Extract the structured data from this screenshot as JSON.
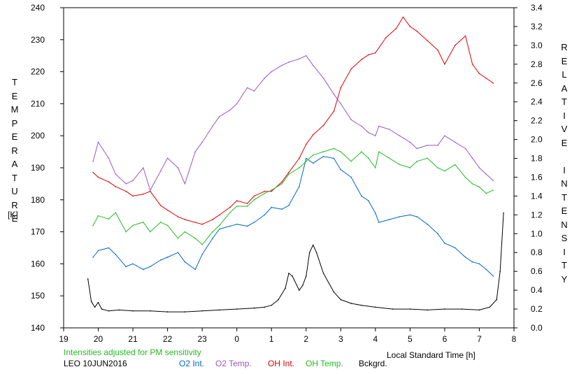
{
  "chart_data": {
    "type": "line",
    "title": "",
    "xlabel": "Local Standard Time [h]",
    "ylabel_left": "TEMPERATURE",
    "ylabel_left_unit": "[K]",
    "ylabel_right": "RELATIVE INTENSITY",
    "x_ticks": [
      "19",
      "20",
      "21",
      "22",
      "23",
      "0",
      "1",
      "2",
      "3",
      "4",
      "5",
      "6",
      "7",
      "8"
    ],
    "x_tick_hours": [
      19,
      20,
      21,
      22,
      23,
      24,
      25,
      26,
      27,
      28,
      29,
      30,
      31,
      32
    ],
    "xlim": [
      19,
      32
    ],
    "ylim_left": [
      140,
      240
    ],
    "y_left_ticks": [
      "140",
      "150",
      "160",
      "170",
      "180",
      "190",
      "200",
      "210",
      "220",
      "230",
      "240"
    ],
    "ylim_right": [
      0.0,
      3.4
    ],
    "y_right_ticks": [
      "0.0",
      "0.2",
      "0.4",
      "0.6",
      "0.8",
      "1.0",
      "1.2",
      "1.4",
      "1.6",
      "1.8",
      "2.0",
      "2.2",
      "2.4",
      "2.6",
      "2.8",
      "3.0",
      "3.2",
      "3.4"
    ],
    "note": "Intensities adjusted for PM sensitivity",
    "station": "LEO 10JUN2016",
    "legend": [
      {
        "label": "O2 Int.",
        "color": "#0066cc"
      },
      {
        "label": "O2 Temp.",
        "color": "#9955cc"
      },
      {
        "label": "OH Int.",
        "color": "#dd0000"
      },
      {
        "label": "OH Temp.",
        "color": "#22bb22"
      },
      {
        "label": "Bckgrd.",
        "color": "#000000"
      }
    ],
    "series": [
      {
        "name": "O2 Int.",
        "axis": "right",
        "color": "#0066cc",
        "x": [
          19.85,
          20.0,
          20.3,
          20.5,
          20.8,
          21.0,
          21.3,
          21.5,
          21.8,
          22.0,
          22.3,
          22.5,
          22.8,
          23.0,
          23.3,
          23.5,
          23.8,
          24.0,
          24.3,
          24.5,
          24.8,
          25.0,
          25.3,
          25.5,
          25.8,
          26.0,
          26.2,
          26.5,
          26.8,
          27.0,
          27.3,
          27.6,
          27.8,
          28.0,
          28.1,
          28.4,
          28.7,
          29.0,
          29.2,
          29.5,
          29.8,
          30.0,
          30.3,
          30.6,
          30.8,
          31.0,
          31.2,
          31.4
        ],
        "y": [
          0.75,
          0.82,
          0.85,
          0.78,
          0.65,
          0.68,
          0.62,
          0.65,
          0.72,
          0.75,
          0.8,
          0.7,
          0.62,
          0.78,
          0.95,
          1.05,
          1.08,
          1.1,
          1.08,
          1.12,
          1.2,
          1.28,
          1.26,
          1.3,
          1.5,
          1.8,
          1.75,
          1.82,
          1.8,
          1.68,
          1.6,
          1.4,
          1.35,
          1.22,
          1.12,
          1.15,
          1.18,
          1.2,
          1.18,
          1.1,
          1.0,
          0.9,
          0.85,
          0.75,
          0.7,
          0.68,
          0.62,
          0.55
        ]
      },
      {
        "name": "O2 Temp.",
        "axis": "left",
        "color": "#9955cc",
        "x": [
          19.85,
          20.0,
          20.3,
          20.5,
          20.8,
          21.0,
          21.3,
          21.5,
          21.8,
          22.0,
          22.3,
          22.5,
          22.8,
          23.0,
          23.3,
          23.5,
          23.8,
          24.0,
          24.3,
          24.5,
          24.8,
          25.0,
          25.3,
          25.5,
          25.8,
          26.0,
          26.2,
          26.5,
          26.8,
          27.0,
          27.3,
          27.6,
          27.8,
          28.0,
          28.1,
          28.4,
          28.7,
          29.0,
          29.2,
          29.5,
          29.8,
          30.0,
          30.3,
          30.6,
          30.8,
          31.0,
          31.2,
          31.4
        ],
        "y": [
          192,
          198,
          193,
          188,
          185,
          186,
          190,
          183,
          189,
          193,
          190,
          185,
          195,
          198,
          203,
          206,
          208,
          210,
          215,
          214,
          218,
          220,
          222,
          223,
          224,
          225,
          222,
          218,
          213,
          210,
          205,
          203,
          201,
          200,
          203,
          202,
          200,
          198,
          196,
          197,
          197,
          200,
          198,
          196,
          193,
          190,
          188,
          186
        ]
      },
      {
        "name": "OH Int.",
        "axis": "right",
        "color": "#dd0000",
        "x": [
          19.85,
          20.0,
          20.3,
          20.5,
          20.8,
          21.0,
          21.3,
          21.5,
          21.8,
          22.0,
          22.3,
          22.5,
          22.8,
          23.0,
          23.3,
          23.5,
          23.8,
          24.0,
          24.3,
          24.5,
          24.8,
          25.0,
          25.3,
          25.5,
          25.8,
          26.0,
          26.2,
          26.5,
          26.8,
          27.0,
          27.3,
          27.6,
          27.8,
          28.0,
          28.3,
          28.6,
          28.8,
          29.0,
          29.2,
          29.5,
          29.8,
          30.0,
          30.3,
          30.6,
          30.8,
          31.0,
          31.2,
          31.4
        ],
        "y": [
          1.65,
          1.6,
          1.55,
          1.5,
          1.45,
          1.4,
          1.42,
          1.45,
          1.3,
          1.25,
          1.18,
          1.15,
          1.12,
          1.1,
          1.15,
          1.2,
          1.28,
          1.35,
          1.32,
          1.4,
          1.45,
          1.45,
          1.55,
          1.65,
          1.8,
          1.95,
          2.05,
          2.15,
          2.3,
          2.55,
          2.75,
          2.85,
          2.9,
          2.92,
          3.08,
          3.18,
          3.3,
          3.2,
          3.15,
          3.05,
          2.95,
          2.8,
          3.0,
          3.1,
          2.8,
          2.7,
          2.65,
          2.6
        ]
      },
      {
        "name": "OH Temp.",
        "axis": "left",
        "color": "#22bb22",
        "x": [
          19.85,
          20.0,
          20.3,
          20.5,
          20.8,
          21.0,
          21.3,
          21.5,
          21.8,
          22.0,
          22.3,
          22.5,
          22.8,
          23.0,
          23.3,
          23.5,
          23.8,
          24.0,
          24.3,
          24.5,
          24.8,
          25.0,
          25.3,
          25.5,
          25.8,
          26.0,
          26.2,
          26.5,
          26.8,
          27.0,
          27.3,
          27.6,
          27.8,
          28.0,
          28.1,
          28.4,
          28.7,
          29.0,
          29.2,
          29.5,
          29.8,
          30.0,
          30.3,
          30.6,
          30.8,
          31.0,
          31.2,
          31.4
        ],
        "y": [
          172,
          175,
          174,
          176,
          170,
          172,
          173,
          170,
          173,
          172,
          168,
          170,
          168,
          166,
          170,
          172,
          176,
          178,
          178,
          180,
          182,
          183,
          185,
          188,
          190,
          192,
          194,
          195,
          196,
          195,
          192,
          195,
          193,
          190,
          195,
          193,
          191,
          190,
          192,
          193,
          190,
          189,
          191,
          187,
          185,
          184,
          182,
          183
        ]
      },
      {
        "name": "Bckgrd.",
        "axis": "right",
        "color": "#000000",
        "x": [
          19.7,
          19.8,
          19.9,
          20.0,
          20.1,
          20.3,
          20.6,
          21.0,
          21.5,
          22.0,
          22.5,
          23.0,
          23.5,
          24.0,
          24.5,
          24.8,
          25.0,
          25.2,
          25.4,
          25.5,
          25.6,
          25.8,
          25.9,
          26.0,
          26.1,
          26.2,
          26.3,
          26.5,
          26.8,
          27.0,
          27.3,
          27.6,
          28.0,
          28.5,
          29.0,
          29.5,
          30.0,
          30.5,
          31.0,
          31.3,
          31.5,
          31.6,
          31.7
        ],
        "y": [
          0.52,
          0.28,
          0.22,
          0.27,
          0.2,
          0.18,
          0.19,
          0.18,
          0.18,
          0.17,
          0.17,
          0.18,
          0.19,
          0.2,
          0.21,
          0.22,
          0.24,
          0.3,
          0.42,
          0.58,
          0.55,
          0.4,
          0.45,
          0.55,
          0.8,
          0.88,
          0.8,
          0.58,
          0.38,
          0.3,
          0.26,
          0.24,
          0.22,
          0.2,
          0.2,
          0.19,
          0.2,
          0.2,
          0.19,
          0.22,
          0.3,
          0.6,
          1.22
        ]
      }
    ]
  }
}
